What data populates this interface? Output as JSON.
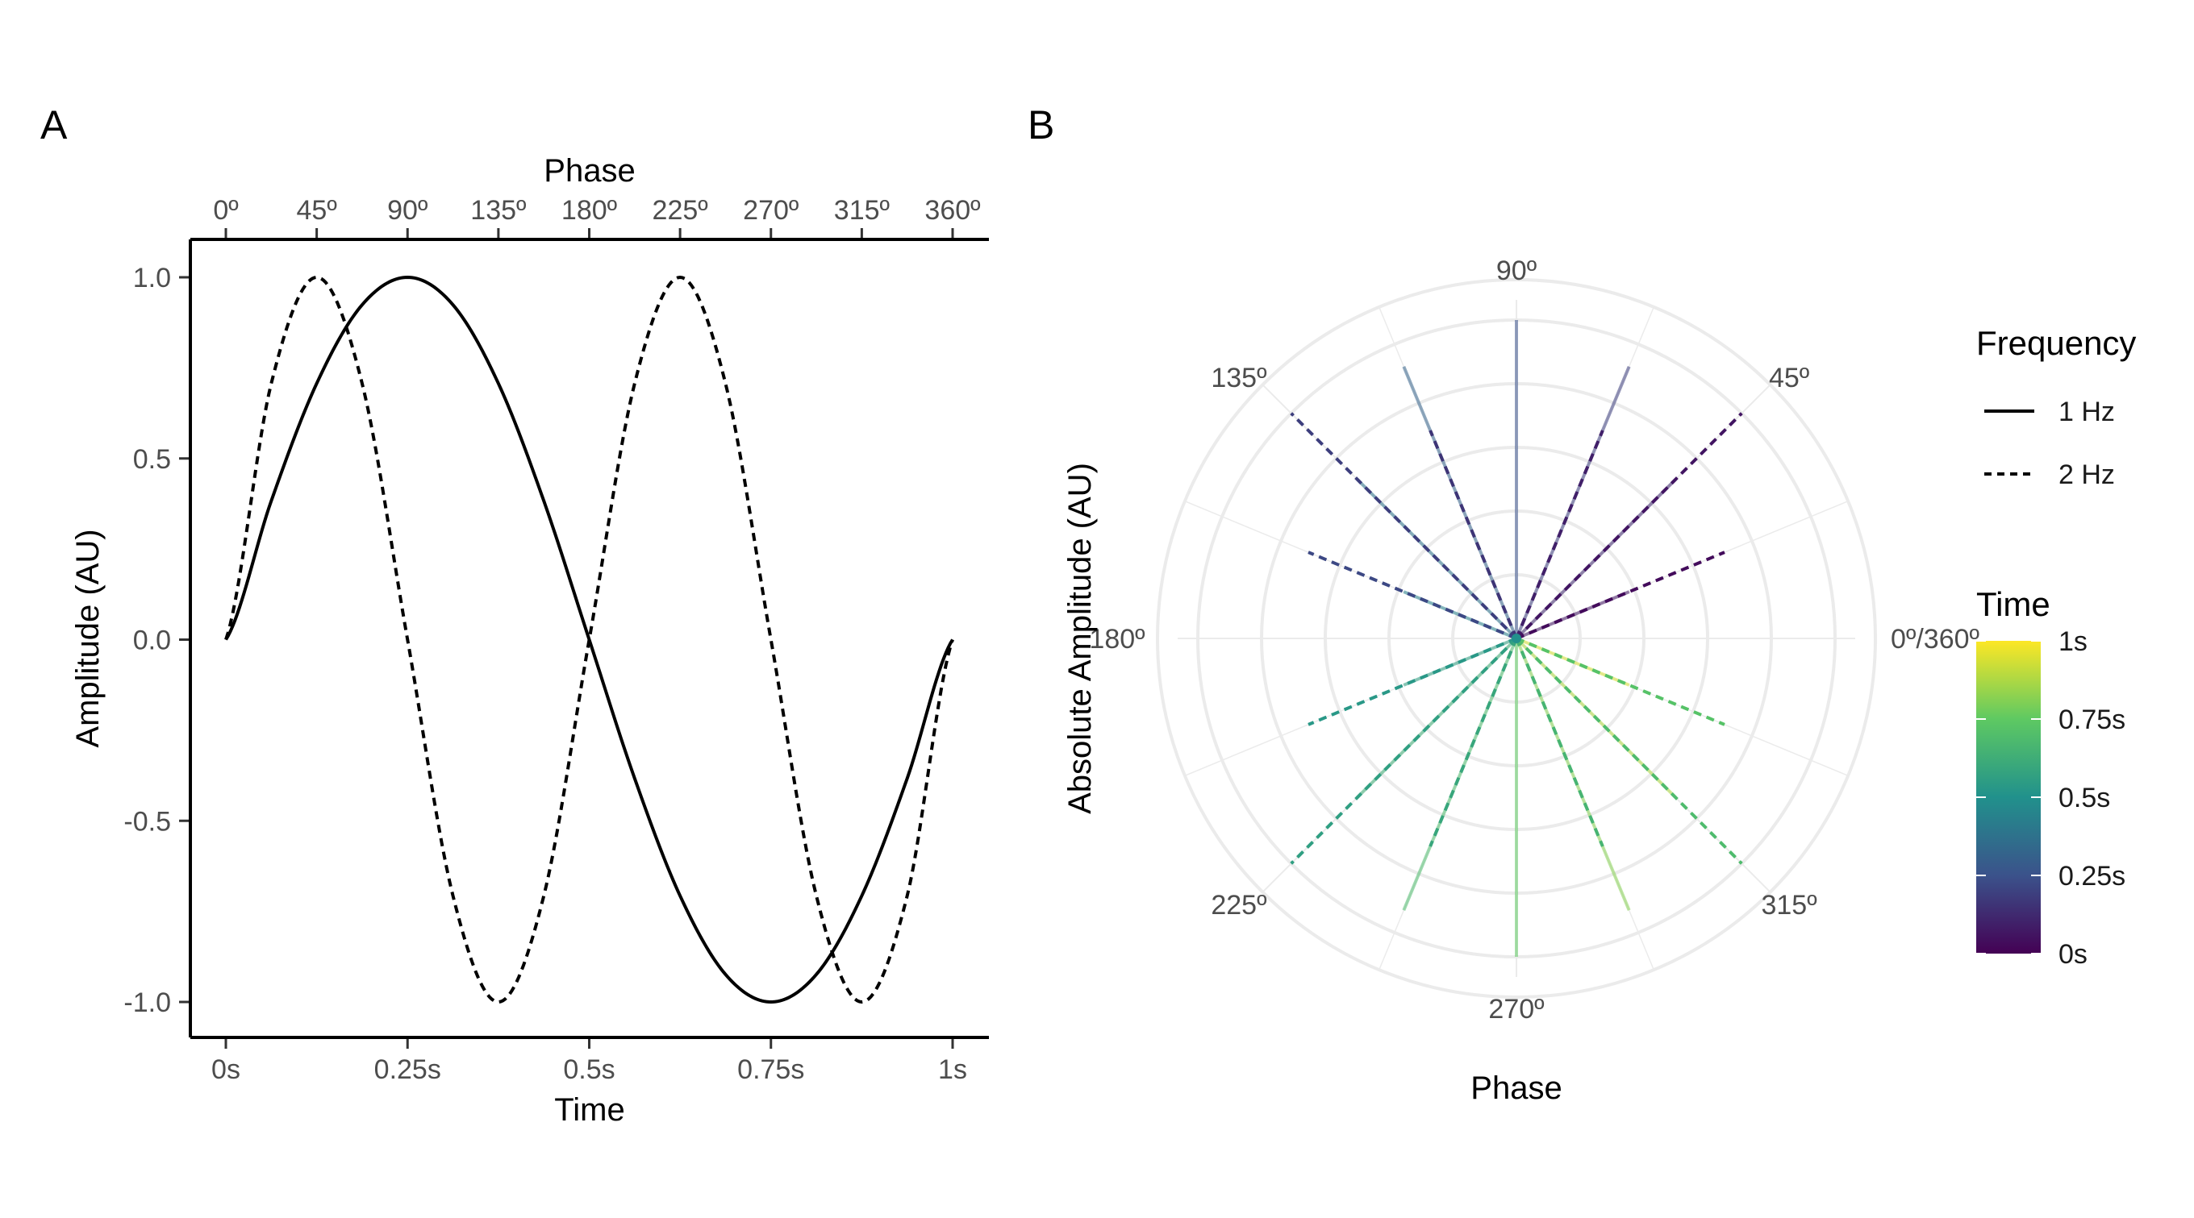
{
  "chart_data": [
    {
      "panel_label": "A",
      "type": "line",
      "xlabel": "Time",
      "ylabel": "Amplitude (AU)",
      "top_axis_label": "Phase",
      "xlim": [
        0,
        1
      ],
      "ylim": [
        -1,
        1
      ],
      "x_ticks": [
        0,
        0.25,
        0.5,
        0.75,
        1
      ],
      "x_tick_labels": [
        "0s",
        "0.25s",
        "0.5s",
        "0.75s",
        "1s"
      ],
      "y_ticks": [
        1.0,
        0.5,
        0.0,
        -0.5,
        -1.0
      ],
      "y_tick_labels": [
        "1.0",
        "0.5",
        "0.0",
        "-0.5",
        "-1.0"
      ],
      "top_ticks": [
        0,
        45,
        90,
        135,
        180,
        225,
        270,
        315,
        360
      ],
      "top_tick_labels": [
        "0º",
        "45º",
        "90º",
        "135º",
        "180º",
        "225º",
        "270º",
        "315º",
        "360º"
      ],
      "grid": false,
      "series": [
        {
          "name": "1 Hz",
          "line_style": "solid",
          "x": [
            0,
            0.0625,
            0.125,
            0.1875,
            0.25,
            0.3125,
            0.375,
            0.4375,
            0.5,
            0.5625,
            0.625,
            0.6875,
            0.75,
            0.8125,
            0.875,
            0.9375,
            1
          ],
          "y": [
            0,
            0.383,
            0.707,
            0.924,
            1.0,
            0.924,
            0.707,
            0.383,
            0,
            -0.383,
            -0.707,
            -0.924,
            -1.0,
            -0.924,
            -0.707,
            -0.383,
            0
          ]
        },
        {
          "name": "2 Hz",
          "line_style": "dashed",
          "x": [
            0,
            0.0625,
            0.125,
            0.1875,
            0.25,
            0.3125,
            0.375,
            0.4375,
            0.5,
            0.5625,
            0.625,
            0.6875,
            0.75,
            0.8125,
            0.875,
            0.9375,
            1
          ],
          "y": [
            0,
            0.707,
            1.0,
            0.707,
            0,
            -0.707,
            -1.0,
            -0.707,
            0,
            0.707,
            1.0,
            0.707,
            0,
            -0.707,
            -1.0,
            -0.707,
            0
          ]
        }
      ]
    },
    {
      "panel_label": "B",
      "type": "polar",
      "xlabel": "Phase",
      "ylabel": "Absolute Amplitude (AU)",
      "angle_ticks": [
        0,
        45,
        90,
        135,
        180,
        225,
        270,
        315
      ],
      "angle_tick_labels": [
        "0º/360º",
        "45º",
        "90º",
        "135º",
        "180º",
        "225º",
        "270º",
        "315º"
      ],
      "radius_range": [
        0,
        1
      ],
      "grid": true,
      "series": [
        {
          "name": "1 Hz",
          "line_style": "solid",
          "phase_deg": [
            22.5,
            45,
            67.5,
            90,
            112.5,
            135,
            157.5,
            180,
            202.5,
            225,
            247.5,
            270,
            292.5,
            315,
            337.5
          ],
          "time_s": [
            0.0625,
            0.125,
            0.1875,
            0.25,
            0.3125,
            0.375,
            0.4375,
            0.5,
            0.5625,
            0.625,
            0.6875,
            0.75,
            0.8125,
            0.875,
            0.9375
          ],
          "abs_amplitude": [
            0.383,
            0.707,
            0.924,
            1.0,
            0.924,
            0.707,
            0.383,
            0,
            0.383,
            0.707,
            0.924,
            1.0,
            0.924,
            0.707,
            0.383
          ]
        },
        {
          "name": "2 Hz",
          "line_style": "dashed",
          "phase_deg": [
            22.5,
            45,
            67.5,
            112.5,
            135,
            157.5,
            202.5,
            225,
            247.5,
            292.5,
            315,
            337.5
          ],
          "time_s": [
            0.03125,
            0.0625,
            0.09375,
            0.15625,
            0.1875,
            0.21875,
            0.53125,
            0.5625,
            0.59375,
            0.65625,
            0.6875,
            0.71875
          ],
          "abs_amplitude": [
            0.707,
            1.0,
            0.707,
            0.707,
            1.0,
            0.707,
            0.707,
            1.0,
            0.707,
            0.707,
            1.0,
            0.707
          ]
        }
      ]
    }
  ],
  "legend": {
    "frequency_title": "Frequency",
    "frequency_items": [
      {
        "label": "1 Hz",
        "line_style": "solid"
      },
      {
        "label": "2 Hz",
        "line_style": "dashed"
      }
    ],
    "time_title": "Time",
    "time_colorbar": {
      "range": [
        0,
        1
      ],
      "labels": [
        "1s",
        "0.75s",
        "0.5s",
        "0.25s",
        "0s"
      ],
      "label_values": [
        1,
        0.75,
        0.5,
        0.25,
        0
      ],
      "colormap": "viridis",
      "colors": [
        "#440154",
        "#3b528b",
        "#21918c",
        "#5ec962",
        "#fde725"
      ]
    }
  }
}
